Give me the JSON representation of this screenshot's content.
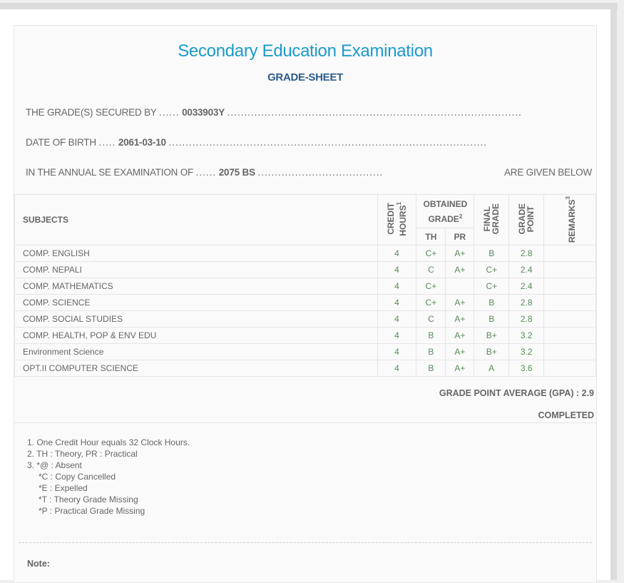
{
  "header": {
    "title": "Secondary Education Examination",
    "subtitle": "GRADE-SHEET"
  },
  "info": {
    "secured_label": "THE GRADE(S) SECURED BY",
    "symbol_no": "0033903Y",
    "dob_label": "DATE OF BIRTH",
    "dob": "2061-03-10",
    "exam_label": "IN THE ANNUAL SE EXAMINATION OF",
    "exam_year": "2075 BS",
    "exam_suffix": "ARE GIVEN BELOW"
  },
  "table": {
    "headers": {
      "subjects": "SUBJECTS",
      "credit": "CREDIT",
      "hours": "HOURS",
      "hours_sup": "1",
      "obtained": "OBTAINED",
      "grade": "GRADE",
      "grade_sup": "2",
      "th": "TH",
      "pr": "PR",
      "final": "FINAL",
      "final2": "GRADE",
      "gp": "GRADE",
      "gp2": "POINT",
      "remarks": "REMARKS",
      "remarks_sup": "3"
    },
    "rows": [
      {
        "subject": "COMP. ENGLISH",
        "credit": "4",
        "th": "C+",
        "pr": "A+",
        "final": "B",
        "gp": "2.8",
        "remarks": ""
      },
      {
        "subject": "COMP. NEPALI",
        "credit": "4",
        "th": "C",
        "pr": "A+",
        "final": "C+",
        "gp": "2.4",
        "remarks": ""
      },
      {
        "subject": "COMP. MATHEMATICS",
        "credit": "4",
        "th": "C+",
        "pr": "",
        "final": "C+",
        "gp": "2.4",
        "remarks": ""
      },
      {
        "subject": "COMP. SCIENCE",
        "credit": "4",
        "th": "C+",
        "pr": "A+",
        "final": "B",
        "gp": "2.8",
        "remarks": ""
      },
      {
        "subject": "COMP. SOCIAL STUDIES",
        "credit": "4",
        "th": "C",
        "pr": "A+",
        "final": "B",
        "gp": "2.8",
        "remarks": ""
      },
      {
        "subject": "COMP. HEALTH, POP & ENV EDU",
        "credit": "4",
        "th": "B",
        "pr": "A+",
        "final": "B+",
        "gp": "3.2",
        "remarks": ""
      },
      {
        "subject": "Environment Science",
        "credit": "4",
        "th": "B",
        "pr": "A+",
        "final": "B+",
        "gp": "3.2",
        "remarks": ""
      },
      {
        "subject": "OPT.II COMPUTER SCIENCE",
        "credit": "4",
        "th": "B",
        "pr": "A+",
        "final": "A",
        "gp": "3.6",
        "remarks": ""
      }
    ]
  },
  "summary": {
    "gpa": "GRADE POINT AVERAGE (GPA) : 2.9",
    "status": "COMPLETED"
  },
  "notes": [
    "1. One Credit Hour equals 32 Clock Hours.",
    "2. TH : Theory, PR : Practical",
    "3. *@ : Absent",
    "*C : Copy Cancelled",
    "*E : Expelled",
    "*T : Theory Grade Missing",
    "*P : Practical Grade Missing"
  ],
  "note_label": "Note:",
  "colors": {
    "title": "#1a9bca",
    "subtitle": "#2e5b8c",
    "values": "#5a8a5a"
  }
}
